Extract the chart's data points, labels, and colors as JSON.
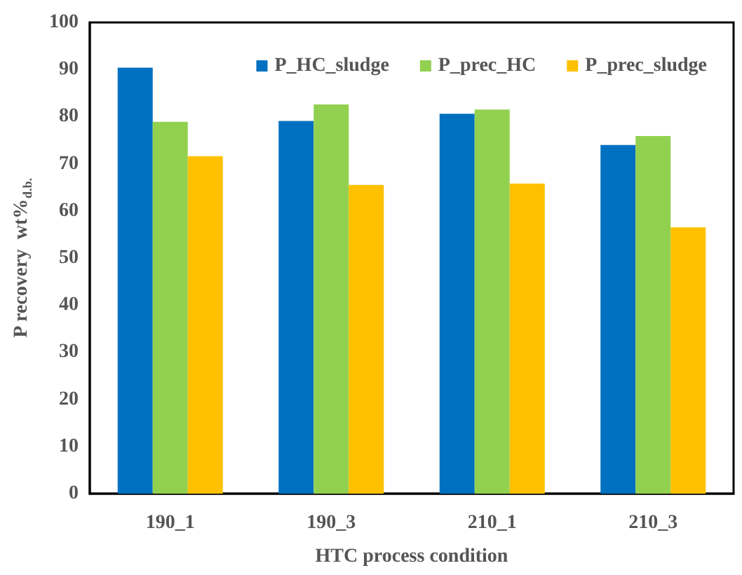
{
  "chart_data": {
    "type": "bar",
    "xlabel": "HTC process condition",
    "ylabel": "P recovery  wt%$_{d.b.}$",
    "categories": [
      "190_1",
      "190_3",
      "210_1",
      "210_3"
    ],
    "series": [
      {
        "name": "P_HC_sludge",
        "color": "#0070c0",
        "values": [
          90.4,
          79.1,
          80.6,
          74.0
        ]
      },
      {
        "name": "P_prec_HC",
        "color": "#92d050",
        "values": [
          78.9,
          82.6,
          81.5,
          75.9
        ]
      },
      {
        "name": "P_prec_sludge",
        "color": "#ffc000",
        "values": [
          71.6,
          65.5,
          65.8,
          56.5
        ]
      }
    ],
    "ylim": [
      0,
      100
    ],
    "yticks": [
      0,
      10,
      20,
      30,
      40,
      50,
      60,
      70,
      80,
      90,
      100
    ],
    "grid": false,
    "legend": "top right"
  }
}
